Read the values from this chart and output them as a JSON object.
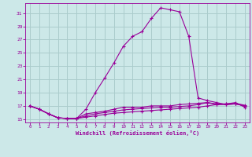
{
  "xlabel": "Windchill (Refroidissement éolien,°C)",
  "background_color": "#cce8e8",
  "grid_color": "#aacccc",
  "line_color": "#990099",
  "hours": [
    0,
    1,
    2,
    3,
    4,
    5,
    6,
    7,
    8,
    9,
    10,
    11,
    12,
    13,
    14,
    15,
    16,
    17,
    18,
    19,
    20,
    21,
    22,
    23
  ],
  "curve1": [
    17.0,
    16.5,
    15.8,
    15.2,
    15.1,
    15.1,
    16.5,
    19.0,
    21.2,
    23.5,
    26.0,
    27.5,
    28.2,
    30.2,
    31.8,
    31.5,
    31.2,
    27.5,
    18.2,
    17.8,
    17.5,
    17.2,
    17.3,
    17.0
  ],
  "curve2": [
    17.0,
    16.5,
    15.8,
    15.2,
    15.1,
    15.1,
    15.8,
    16.0,
    16.2,
    16.5,
    16.8,
    16.8,
    16.8,
    17.0,
    17.0,
    17.0,
    17.2,
    17.3,
    17.4,
    17.5,
    17.2,
    17.2,
    17.3,
    17.0
  ],
  "curve3": [
    17.0,
    16.5,
    15.8,
    15.2,
    15.1,
    15.1,
    15.5,
    15.8,
    16.0,
    16.2,
    16.4,
    16.5,
    16.6,
    16.7,
    16.8,
    16.8,
    16.9,
    17.0,
    17.2,
    17.5,
    17.3,
    17.3,
    17.4,
    17.1
  ],
  "curve4": [
    17.0,
    16.5,
    15.8,
    15.2,
    15.1,
    15.1,
    15.3,
    15.5,
    15.7,
    15.9,
    16.0,
    16.1,
    16.2,
    16.3,
    16.4,
    16.5,
    16.6,
    16.7,
    16.8,
    17.0,
    17.2,
    17.3,
    17.5,
    16.8
  ],
  "ylim": [
    14.5,
    32.5
  ],
  "yticks": [
    15,
    17,
    19,
    21,
    23,
    25,
    27,
    29,
    31
  ],
  "xlim": [
    -0.5,
    23.5
  ],
  "xticks": [
    0,
    1,
    2,
    3,
    4,
    5,
    6,
    7,
    8,
    9,
    10,
    11,
    12,
    13,
    14,
    15,
    16,
    17,
    18,
    19,
    20,
    21,
    22,
    23
  ]
}
